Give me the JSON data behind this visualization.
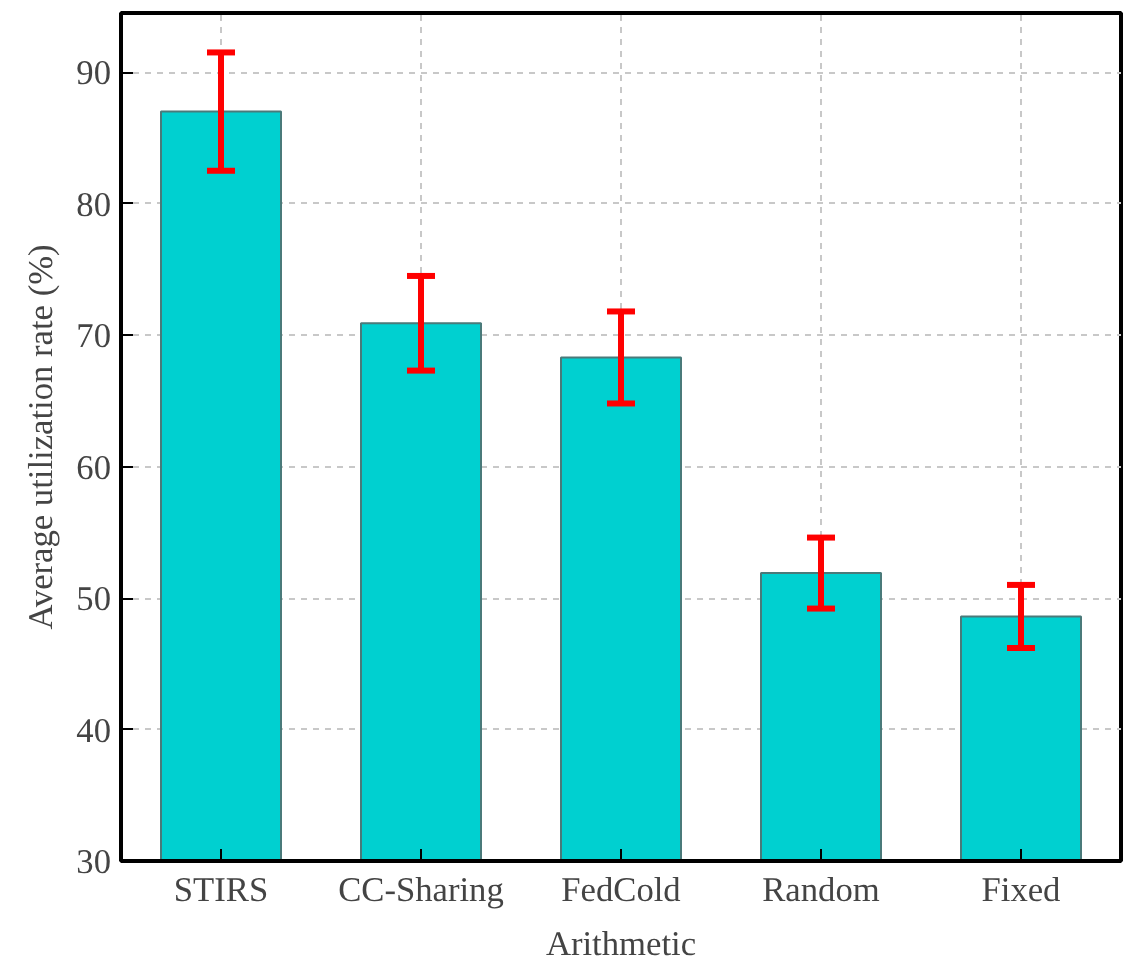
{
  "chart_data": {
    "type": "bar",
    "xlabel": "Arithmetic",
    "ylabel": "Average utilization rate (%)",
    "categories": [
      "STIRS",
      "CC-Sharing",
      "FedCold",
      "Random",
      "Fixed"
    ],
    "values": [
      87.0,
      70.9,
      68.3,
      51.9,
      48.6
    ],
    "errors": [
      4.5,
      3.6,
      3.5,
      2.7,
      2.4
    ],
    "color": "#00d0d0",
    "ylim": [
      30,
      94.5
    ],
    "yticks": [
      30,
      40,
      50,
      60,
      70,
      80,
      90
    ],
    "grid": true
  }
}
